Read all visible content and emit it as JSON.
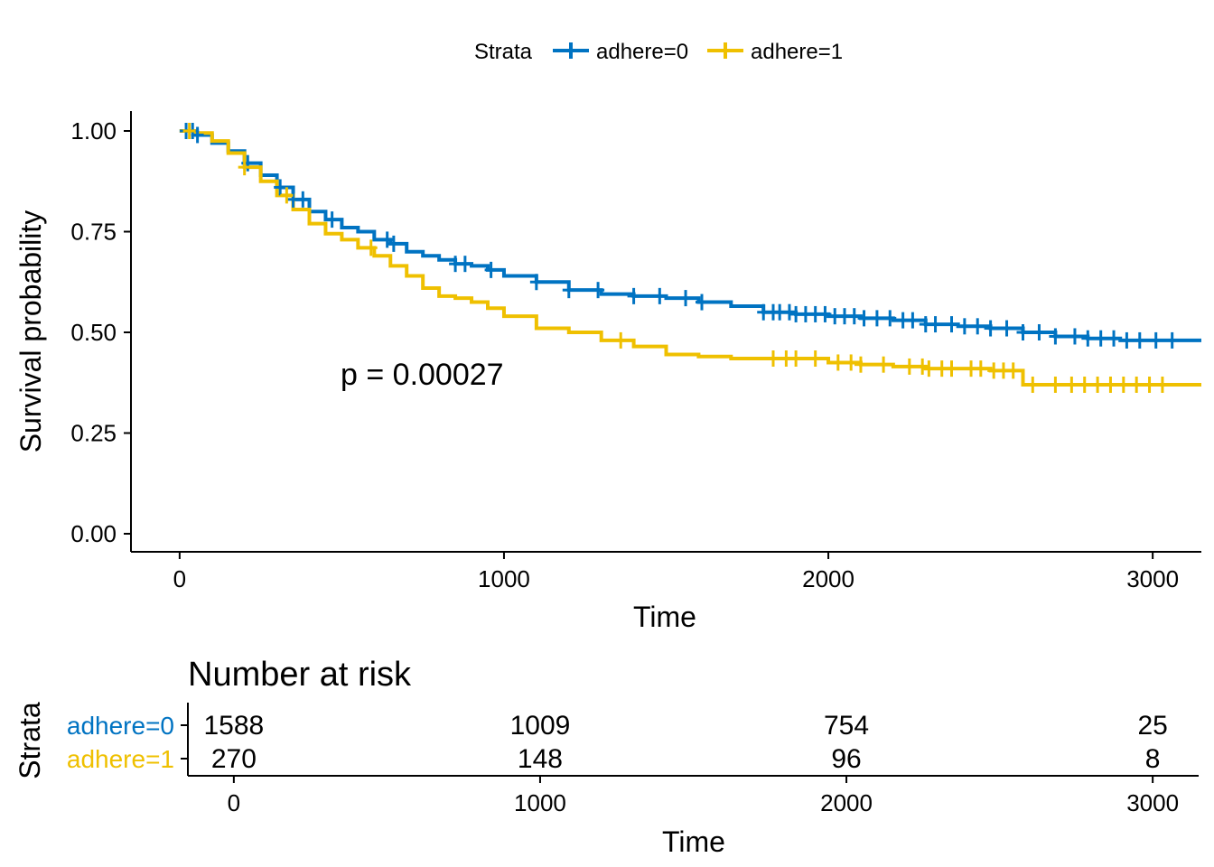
{
  "legend": {
    "title": "Strata",
    "items": [
      {
        "label": "adhere=0",
        "color": "#0073C2"
      },
      {
        "label": "adhere=1",
        "color": "#EFC000"
      }
    ]
  },
  "chart_data": [
    {
      "type": "line",
      "title": "",
      "xlabel": "Time",
      "ylabel": "Survival probability",
      "xlim": [
        -150,
        3150
      ],
      "ylim": [
        0,
        1
      ],
      "x_ticks": [
        0,
        1000,
        2000,
        3000
      ],
      "y_ticks": [
        0.0,
        0.25,
        0.5,
        0.75,
        1.0
      ],
      "y_tick_labels": [
        "0.00",
        "0.25",
        "0.50",
        "0.75",
        "1.00"
      ],
      "grid": false,
      "legend_position": "top",
      "annotation": "p = 0.00027",
      "step": true,
      "series": [
        {
          "name": "adhere=0",
          "color": "#0073C2",
          "x": [
            0,
            50,
            100,
            150,
            200,
            250,
            300,
            350,
            400,
            450,
            500,
            550,
            600,
            650,
            700,
            750,
            800,
            850,
            900,
            950,
            1000,
            1100,
            1200,
            1300,
            1400,
            1500,
            1600,
            1700,
            1800,
            1900,
            2000,
            2100,
            2200,
            2300,
            2400,
            2500,
            2600,
            2700,
            2800,
            2900,
            3000,
            3100,
            3150
          ],
          "y": [
            1.0,
            0.99,
            0.97,
            0.95,
            0.92,
            0.89,
            0.86,
            0.83,
            0.8,
            0.78,
            0.76,
            0.75,
            0.73,
            0.72,
            0.7,
            0.69,
            0.68,
            0.67,
            0.665,
            0.655,
            0.64,
            0.625,
            0.605,
            0.595,
            0.59,
            0.585,
            0.575,
            0.565,
            0.55,
            0.545,
            0.54,
            0.535,
            0.53,
            0.52,
            0.515,
            0.51,
            0.5,
            0.49,
            0.485,
            0.48,
            0.48,
            0.48,
            0.48
          ],
          "censor_x": [
            20,
            40,
            55,
            210,
            310,
            350,
            380,
            470,
            640,
            660,
            850,
            880,
            960,
            1100,
            1200,
            1290,
            1400,
            1480,
            1560,
            1610,
            1800,
            1830,
            1850,
            1880,
            1900,
            1930,
            1960,
            1990,
            2020,
            2050,
            2080,
            2110,
            2150,
            2190,
            2230,
            2260,
            2300,
            2330,
            2380,
            2420,
            2460,
            2500,
            2550,
            2600,
            2650,
            2700,
            2760,
            2800,
            2840,
            2880,
            2920,
            2960,
            3010,
            3060
          ]
        },
        {
          "name": "adhere=1",
          "color": "#EFC000",
          "x": [
            0,
            50,
            100,
            150,
            200,
            250,
            300,
            350,
            400,
            450,
            500,
            550,
            600,
            650,
            700,
            750,
            800,
            850,
            900,
            950,
            1000,
            1100,
            1200,
            1300,
            1400,
            1500,
            1600,
            1700,
            1800,
            1900,
            2000,
            2100,
            2200,
            2300,
            2400,
            2500,
            2600,
            2700,
            2800,
            2900,
            3000,
            3100,
            3150
          ],
          "y": [
            1.0,
            0.995,
            0.975,
            0.945,
            0.91,
            0.875,
            0.84,
            0.805,
            0.77,
            0.745,
            0.73,
            0.71,
            0.69,
            0.665,
            0.64,
            0.61,
            0.59,
            0.585,
            0.575,
            0.56,
            0.54,
            0.51,
            0.5,
            0.48,
            0.465,
            0.445,
            0.44,
            0.435,
            0.435,
            0.435,
            0.425,
            0.42,
            0.415,
            0.41,
            0.41,
            0.405,
            0.37,
            0.37,
            0.37,
            0.37,
            0.37,
            0.37,
            0.37
          ],
          "censor_x": [
            30,
            200,
            330,
            590,
            1360,
            1830,
            1870,
            1900,
            1960,
            2030,
            2070,
            2100,
            2170,
            2250,
            2290,
            2310,
            2350,
            2380,
            2440,
            2470,
            2510,
            2540,
            2570,
            2630,
            2700,
            2750,
            2790,
            2830,
            2870,
            2910,
            2950,
            2990,
            3030
          ]
        }
      ]
    },
    {
      "type": "table",
      "title": "Number at risk",
      "xlabel": "Time",
      "ylabel": "Strata",
      "x_ticks": [
        0,
        1000,
        2000,
        3000
      ],
      "rows": [
        {
          "name": "adhere=0",
          "color": "#0073C2",
          "values": [
            "1588",
            "1009",
            "754",
            "25"
          ]
        },
        {
          "name": "adhere=1",
          "color": "#EFC000",
          "values": [
            "270",
            "148",
            "96",
            "8"
          ]
        }
      ]
    }
  ]
}
